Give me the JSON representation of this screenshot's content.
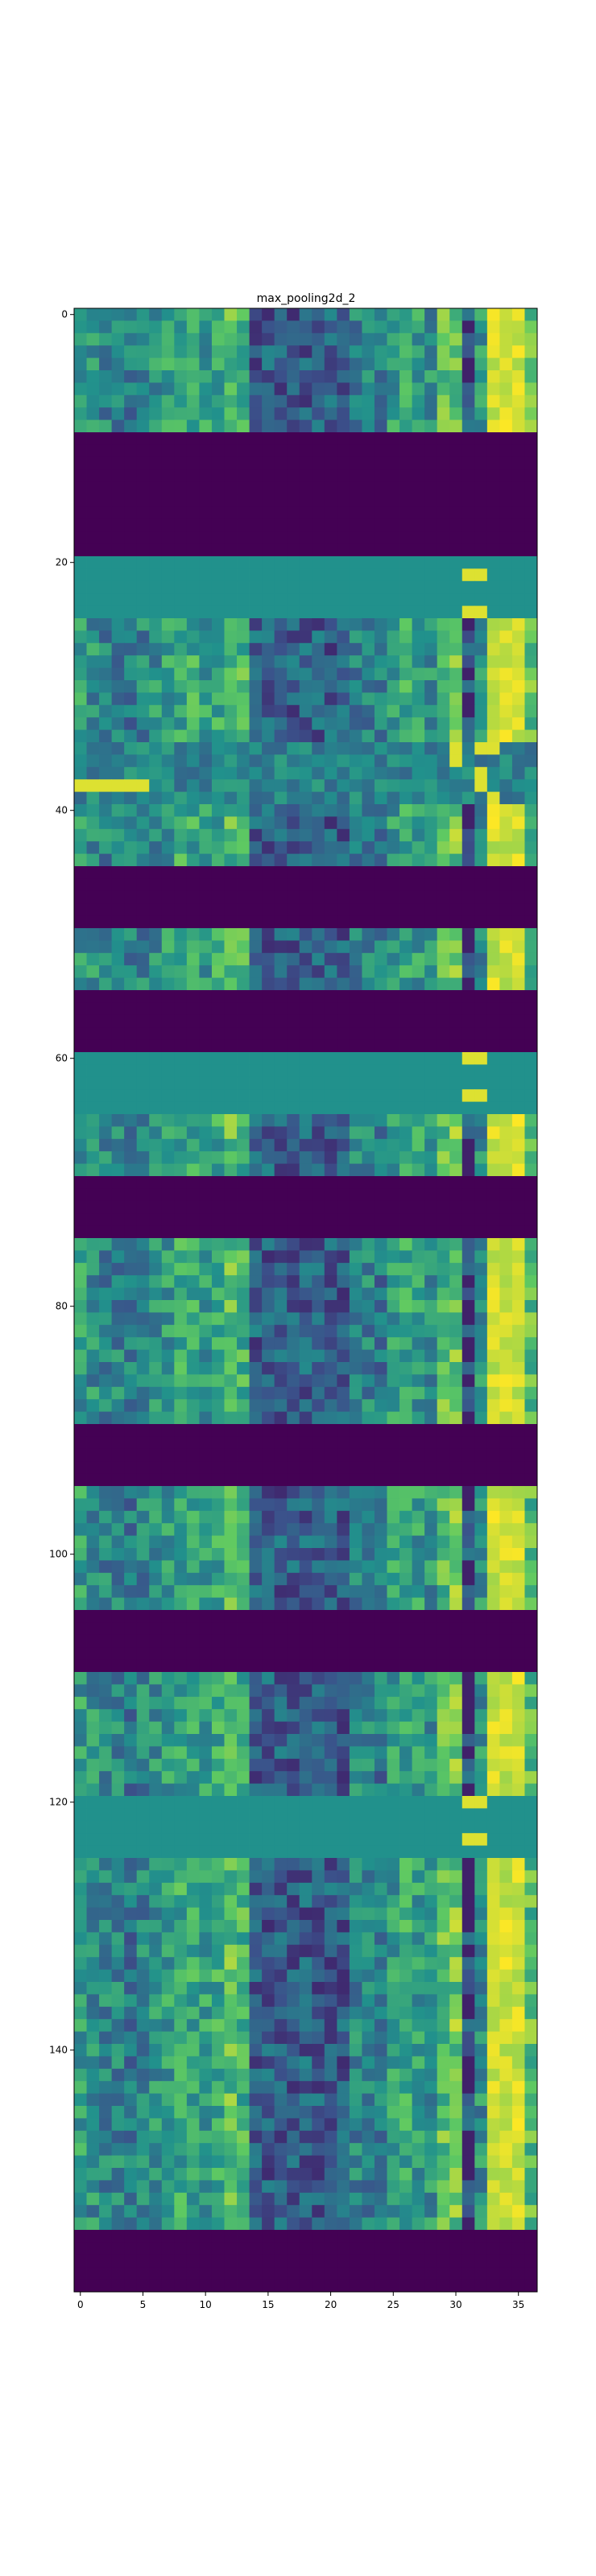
{
  "chart_data": {
    "type": "heatmap",
    "title": "max_pooling2d_2",
    "xlabel": "",
    "ylabel": "",
    "colormap": "viridis",
    "n_cols": 37,
    "n_rows": 160,
    "xlim": [
      -0.5,
      36.5
    ],
    "ylim": [
      159.5,
      -0.5
    ],
    "x_ticks": [
      0,
      5,
      10,
      15,
      20,
      25,
      30,
      35
    ],
    "y_ticks": [
      0,
      20,
      40,
      60,
      80,
      100,
      120,
      140
    ],
    "x_tick_labels": [
      "0",
      "5",
      "10",
      "15",
      "20",
      "25",
      "30",
      "35"
    ],
    "y_tick_labels": [
      "0",
      "20",
      "40",
      "60",
      "80",
      "100",
      "120",
      "140"
    ],
    "value_range": [
      0,
      1
    ],
    "colors": {
      "dark_purple": "#440154",
      "blue_purple": "#3b528b",
      "teal": "#21918c",
      "green": "#5ec962",
      "yellow": "#fde725"
    },
    "row_bands": [
      {
        "rows": [
          0,
          9
        ],
        "pattern": "textured"
      },
      {
        "rows": [
          10,
          19
        ],
        "pattern": "uniform_low",
        "value": 0.0
      },
      {
        "rows": [
          20,
          24
        ],
        "pattern": "uniform_mid",
        "value": 0.5
      },
      {
        "rows": [
          25,
          34
        ],
        "pattern": "textured"
      },
      {
        "rows": [
          35,
          39
        ],
        "pattern": "textured_mid"
      },
      {
        "rows": [
          40,
          44
        ],
        "pattern": "textured"
      },
      {
        "rows": [
          45,
          49
        ],
        "pattern": "uniform_low",
        "value": 0.0
      },
      {
        "rows": [
          50,
          54
        ],
        "pattern": "textured"
      },
      {
        "rows": [
          55,
          59
        ],
        "pattern": "uniform_low",
        "value": 0.0
      },
      {
        "rows": [
          60,
          64
        ],
        "pattern": "uniform_mid",
        "value": 0.5
      },
      {
        "rows": [
          65,
          69
        ],
        "pattern": "textured"
      },
      {
        "rows": [
          70,
          74
        ],
        "pattern": "uniform_low",
        "value": 0.0
      },
      {
        "rows": [
          75,
          89
        ],
        "pattern": "textured"
      },
      {
        "rows": [
          90,
          94
        ],
        "pattern": "uniform_low",
        "value": 0.0
      },
      {
        "rows": [
          95,
          104
        ],
        "pattern": "textured"
      },
      {
        "rows": [
          105,
          109
        ],
        "pattern": "uniform_low",
        "value": 0.0
      },
      {
        "rows": [
          110,
          119
        ],
        "pattern": "textured"
      },
      {
        "rows": [
          120,
          124
        ],
        "pattern": "uniform_mid",
        "value": 0.5
      },
      {
        "rows": [
          125,
          154
        ],
        "pattern": "textured"
      },
      {
        "rows": [
          155,
          159
        ],
        "pattern": "uniform_low",
        "value": 0.0
      }
    ],
    "column_profile": [
      0.55,
      0.5,
      0.45,
      0.45,
      0.4,
      0.45,
      0.5,
      0.55,
      0.6,
      0.6,
      0.55,
      0.6,
      0.7,
      0.65,
      0.3,
      0.3,
      0.3,
      0.3,
      0.3,
      0.3,
      0.3,
      0.3,
      0.45,
      0.45,
      0.4,
      0.55,
      0.6,
      0.55,
      0.5,
      0.7,
      0.75,
      0.4,
      0.5,
      0.95,
      0.95,
      0.9,
      0.7
    ]
  }
}
